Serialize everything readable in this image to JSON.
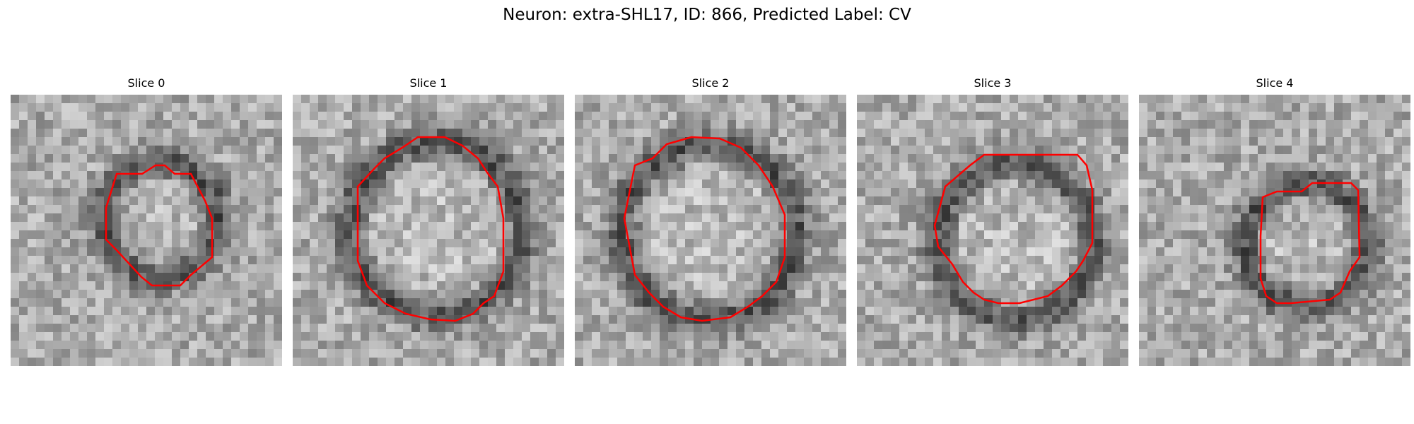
{
  "figure": {
    "suptitle": "Neuron: extra-SHL17, ID: 866, Predicted Label: CV"
  },
  "panels": [
    {
      "title": "Slice 0"
    },
    {
      "title": "Slice 1"
    },
    {
      "title": "Slice 2"
    },
    {
      "title": "Slice 3"
    },
    {
      "title": "Slice 4"
    }
  ],
  "contour_color": "#ff0000",
  "colormap": "gray"
}
